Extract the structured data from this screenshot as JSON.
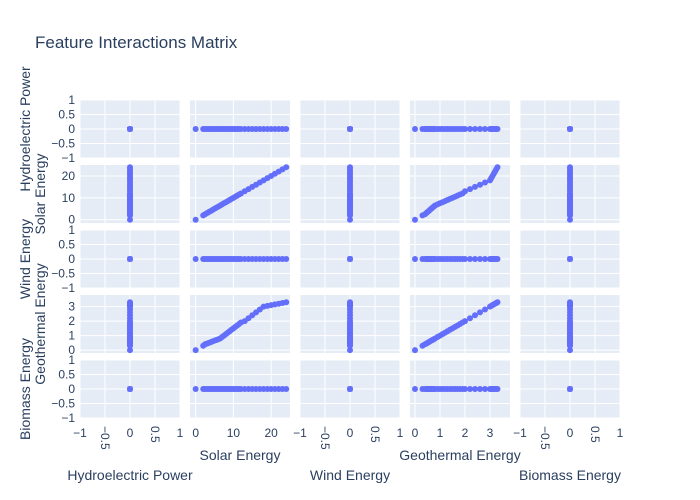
{
  "chart_data": {
    "type": "scatter",
    "title": "Feature Interactions Matrix",
    "variables": [
      "Hydroelectric Power",
      "Solar Energy",
      "Wind Energy",
      "Geothermal Energy",
      "Biomass Energy"
    ],
    "axes": {
      "Hydroelectric Power": {
        "range": [
          -1,
          1
        ],
        "ticks": [
          -1,
          -0.5,
          0,
          0.5,
          1
        ],
        "tick_labels": [
          "−1",
          "−0.5",
          "0",
          "0.5",
          "1"
        ]
      },
      "Solar Energy": {
        "range": [
          -1.5,
          25
        ],
        "ticks": [
          0,
          10,
          20
        ],
        "tick_labels": [
          "0",
          "10",
          "20"
        ]
      },
      "Wind Energy": {
        "range": [
          -1,
          1
        ],
        "ticks": [
          -1,
          -0.5,
          0,
          0.5,
          1
        ],
        "tick_labels": [
          "−1",
          "−0.5",
          "0",
          "0.5",
          "1"
        ]
      },
      "Geothermal Energy": {
        "range": [
          -0.2,
          3.8
        ],
        "ticks": [
          0,
          1,
          2,
          3
        ],
        "tick_labels": [
          "0",
          "1",
          "2",
          "3"
        ]
      },
      "Biomass Energy": {
        "range": [
          -1,
          1
        ],
        "ticks": [
          -1,
          -0.5,
          0,
          0.5,
          1
        ],
        "tick_labels": [
          "−1",
          "−0.5",
          "0",
          "0.5",
          "1"
        ]
      }
    },
    "series": [
      {
        "values": {
          "Hydroelectric Power": [
            0,
            0,
            0,
            0,
            0,
            0,
            0,
            0,
            0,
            0,
            0,
            0,
            0,
            0,
            0,
            0,
            0,
            0,
            0,
            0,
            0,
            0,
            0,
            0,
            0,
            0,
            0,
            0,
            0,
            0,
            0,
            0,
            0,
            0
          ],
          "Solar Energy": [
            0,
            2,
            2.5,
            3,
            3.5,
            4,
            4.5,
            5,
            5.5,
            6,
            6.5,
            7,
            7.5,
            8,
            8.5,
            9,
            9.5,
            10,
            10.5,
            11,
            11.5,
            12,
            13,
            14,
            15,
            16,
            17,
            18,
            19,
            20,
            21,
            22,
            23,
            24
          ],
          "Wind Energy": [
            0,
            0,
            0,
            0,
            0,
            0,
            0,
            0,
            0,
            0,
            0,
            0,
            0,
            0,
            0,
            0,
            0,
            0,
            0,
            0,
            0,
            0,
            0,
            0,
            0,
            0,
            0,
            0,
            0,
            0,
            0,
            0,
            0,
            0
          ],
          "Geothermal Energy": [
            0,
            0.3,
            0.4,
            0.45,
            0.5,
            0.55,
            0.6,
            0.65,
            0.7,
            0.75,
            0.8,
            0.9,
            1.0,
            1.1,
            1.2,
            1.3,
            1.4,
            1.5,
            1.6,
            1.7,
            1.8,
            1.9,
            2.0,
            2.2,
            2.4,
            2.6,
            2.8,
            3.0,
            3.05,
            3.1,
            3.15,
            3.2,
            3.25,
            3.3
          ],
          "Biomass Energy": [
            0,
            0,
            0,
            0,
            0,
            0,
            0,
            0,
            0,
            0,
            0,
            0,
            0,
            0,
            0,
            0,
            0,
            0,
            0,
            0,
            0,
            0,
            0,
            0,
            0,
            0,
            0,
            0,
            0,
            0,
            0,
            0,
            0,
            0
          ]
        }
      }
    ],
    "marker_color": "#636efa",
    "grid": true
  }
}
